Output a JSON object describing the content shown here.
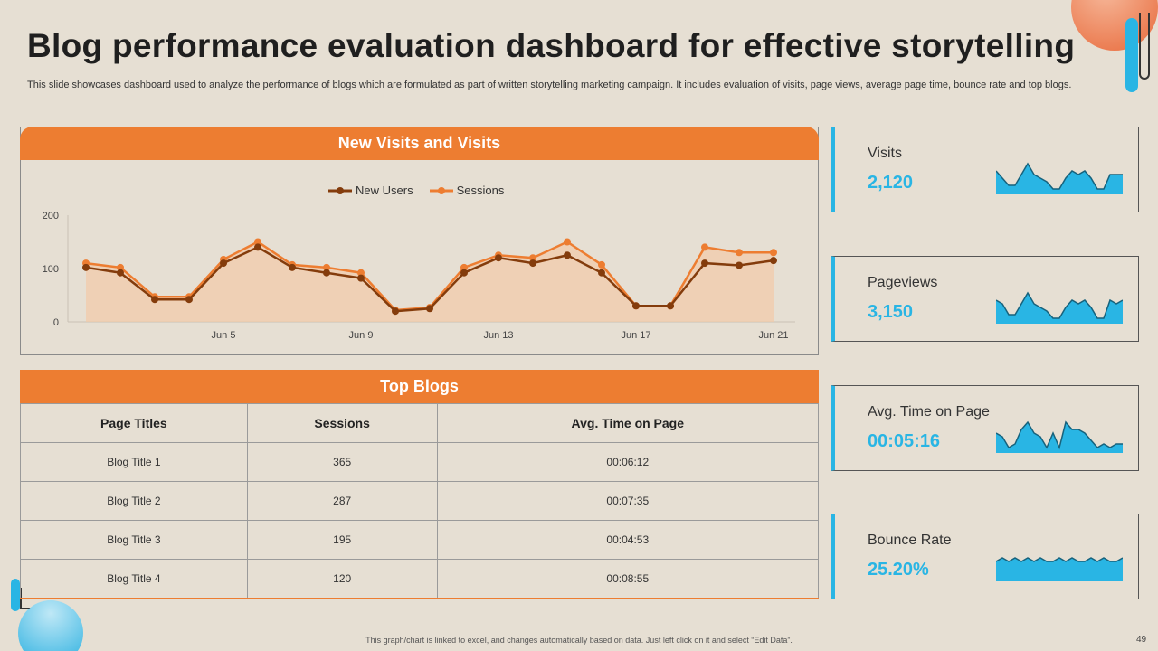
{
  "slide": {
    "title": "Blog performance evaluation dashboard for effective storytelling",
    "subtitle": "This slide showcases dashboard used to analyze the performance of blogs which are formulated as part of written storytelling marketing campaign. It includes evaluation of visits, page views, average page time, bounce rate and top blogs.",
    "footer": "This graph/chart is linked to excel, and changes automatically based on data. Just left click on it and select “Edit Data”.",
    "page_number": "49"
  },
  "colors": {
    "accent_orange": "#ed7d31",
    "dark_brown": "#843c0c",
    "sky_blue": "#29b5e4",
    "background": "#e6dfd3"
  },
  "chart_panel": {
    "header": "New Visits and Visits"
  },
  "chart_data": {
    "type": "line",
    "title": "New Visits and Visits",
    "x": [
      "Jun 1",
      "Jun 2",
      "Jun 3",
      "Jun 4",
      "Jun 5",
      "Jun 6",
      "Jun 7",
      "Jun 8",
      "Jun 9",
      "Jun 10",
      "Jun 11",
      "Jun 12",
      "Jun 13",
      "Jun 14",
      "Jun 15",
      "Jun 16",
      "Jun 17",
      "Jun 18",
      "Jun 19",
      "Jun 20",
      "Jun 21"
    ],
    "tick_labels": [
      "Jun 5",
      "Jun 9",
      "Jun 13",
      "Jun 17",
      "Jun 21"
    ],
    "series": [
      {
        "name": "New Users",
        "values": [
          102,
          92,
          42,
          42,
          110,
          140,
          102,
          92,
          82,
          20,
          25,
          92,
          120,
          110,
          125,
          92,
          30,
          30,
          110,
          106,
          115
        ]
      },
      {
        "name": "Sessions",
        "values": [
          110,
          102,
          47,
          47,
          117,
          150,
          107,
          102,
          92,
          22,
          27,
          102,
          125,
          120,
          150,
          107,
          30,
          30,
          140,
          130,
          130
        ]
      }
    ],
    "yticks": [
      0,
      100,
      200
    ],
    "ylim": [
      0,
      200
    ],
    "legend": "top-center",
    "xlabel": "",
    "ylabel": ""
  },
  "table": {
    "header": "Top Blogs",
    "columns": [
      "Page Titles",
      "Sessions",
      "Avg. Time on Page"
    ],
    "rows": [
      [
        "Blog Title 1",
        "365",
        "00:06:12"
      ],
      [
        "Blog Title 2",
        "287",
        "00:07:35"
      ],
      [
        "Blog Title 3",
        "195",
        "00:04:53"
      ],
      [
        "Blog Title 4",
        "120",
        "00:08:55"
      ]
    ]
  },
  "kpis": [
    {
      "label": "Visits",
      "value": "2,120",
      "spark": [
        6,
        4,
        2,
        2,
        5,
        8,
        5,
        4,
        3,
        1,
        1,
        4,
        6,
        5,
        6,
        4,
        1,
        1,
        5,
        5,
        5
      ]
    },
    {
      "label": "Pageviews",
      "value": "3,150",
      "spark": [
        6,
        5,
        2,
        2,
        5,
        8,
        5,
        4,
        3,
        1,
        1,
        4,
        6,
        5,
        6,
        4,
        1,
        1,
        6,
        5,
        6
      ]
    },
    {
      "label": "Avg. Time on Page",
      "value": "00:05:16",
      "spark": [
        5,
        4,
        1,
        2,
        6,
        8,
        5,
        4,
        1,
        5,
        1,
        8,
        6,
        6,
        5,
        3,
        1,
        2,
        1,
        2,
        2
      ]
    },
    {
      "label": "Bounce Rate",
      "value": "25.20%",
      "spark": [
        5,
        6,
        5,
        6,
        5,
        6,
        5,
        6,
        5,
        5,
        6,
        5,
        6,
        5,
        5,
        6,
        5,
        6,
        5,
        5,
        6
      ]
    }
  ]
}
